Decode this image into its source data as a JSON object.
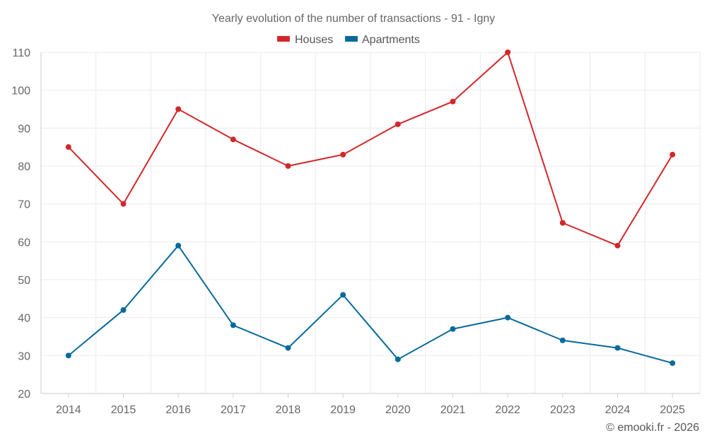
{
  "chart_data": {
    "type": "line",
    "title": "Yearly evolution of the number of transactions - 91 - Igny",
    "categories": [
      "2014",
      "2015",
      "2016",
      "2017",
      "2018",
      "2019",
      "2020",
      "2021",
      "2022",
      "2023",
      "2024",
      "2025"
    ],
    "series": [
      {
        "name": "Houses",
        "color": "#d3272a",
        "values": [
          85,
          70,
          95,
          87,
          80,
          83,
          91,
          97,
          110,
          65,
          59,
          83
        ]
      },
      {
        "name": "Apartments",
        "color": "#086a9c",
        "values": [
          30,
          42,
          59,
          38,
          32,
          46,
          29,
          37,
          40,
          34,
          32,
          28
        ]
      }
    ],
    "yticks": [
      20,
      30,
      40,
      50,
      60,
      70,
      80,
      90,
      100,
      110
    ],
    "ylim": [
      20,
      110
    ],
    "xlabel": "",
    "ylabel": "",
    "grid": true,
    "legend_position": "top-center"
  },
  "credit": "© emooki.fr - 2026"
}
